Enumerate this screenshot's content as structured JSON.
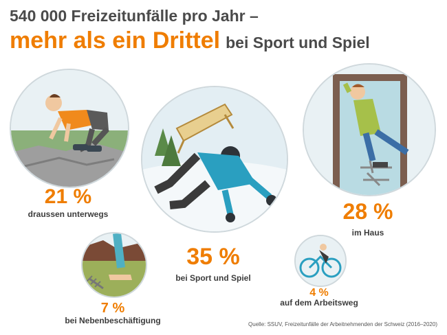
{
  "title": {
    "line1": "540 000 Freizeitunfälle pro Jahr –",
    "highlight": "mehr als ein Drittel",
    "rest": "bei Sport und Spiel"
  },
  "chart_data": {
    "type": "bubble",
    "unit": "%",
    "categories": [
      "bei Sport und Spiel",
      "im Haus",
      "draussen unterwegs",
      "bei Nebenbeschäftigung",
      "auf dem Arbeitsweg"
    ],
    "values": [
      35,
      28,
      21,
      7,
      4
    ]
  },
  "labels": {
    "sport_pct": "35 %",
    "sport_label": "bei Sport und Spiel",
    "haus_pct": "28 %",
    "haus_label": "im Haus",
    "draussen_pct": "21 %",
    "draussen_label": "draussen unterwegs",
    "neben_pct": "7 %",
    "neben_label": "bei Nebenbeschäftigung",
    "arbeit_pct": "4 %",
    "arbeit_label": "auf dem Arbeitsweg"
  },
  "source": "Quelle: SSUV, Freizeitunfälle der Arbeitnehmenden der Schweiz (2016–2020)",
  "colors": {
    "accent": "#ef7d00",
    "text": "#3c3c3c"
  }
}
